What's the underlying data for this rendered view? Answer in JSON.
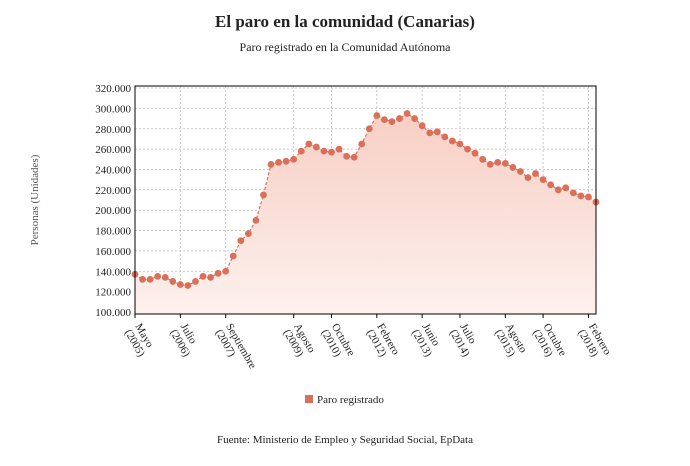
{
  "chart_data": {
    "type": "line",
    "title": "El paro en la comunidad (Canarias)",
    "subtitle": "Paro registrado en la Comunidad Autónoma",
    "y_label": "Personas (Unidades)",
    "source": "Fuente: Ministerio de Empleo y Seguridad Social, EpData",
    "categories": [
      "Mayo (2005)",
      null,
      null,
      null,
      null,
      null,
      "Julio (2006)",
      null,
      null,
      null,
      null,
      null,
      "Septiembre (2007)",
      null,
      null,
      null,
      null,
      null,
      null,
      null,
      null,
      "Agosto (2009)",
      null,
      null,
      null,
      null,
      "Octubre (2010)",
      null,
      null,
      null,
      null,
      null,
      "Febrero (2012)",
      null,
      null,
      null,
      null,
      null,
      "Junio (2013)",
      null,
      null,
      null,
      null,
      "Julio (2014)",
      null,
      null,
      null,
      null,
      null,
      "Agosto (2015)",
      null,
      null,
      null,
      null,
      "Octubre (2016)",
      null,
      null,
      null,
      null,
      null,
      "Febrero (2018)",
      null
    ],
    "series": [
      {
        "name": "Paro registrado",
        "color": "#d9705a",
        "values": [
          137000,
          132000,
          132000,
          135000,
          134000,
          130000,
          127000,
          126000,
          130000,
          135000,
          134000,
          138000,
          140000,
          155000,
          170000,
          177000,
          190000,
          215000,
          245000,
          247000,
          248000,
          250000,
          258000,
          265000,
          262000,
          258000,
          257000,
          260000,
          253000,
          252000,
          265000,
          280000,
          293000,
          289000,
          287000,
          290000,
          295000,
          290000,
          283000,
          276000,
          277000,
          272000,
          268000,
          265000,
          260000,
          256000,
          250000,
          245000,
          247000,
          246000,
          242000,
          238000,
          232000,
          236000,
          230000,
          225000,
          220000,
          222000,
          217000,
          214000,
          213000,
          208000
        ]
      }
    ],
    "ylim": [
      98000,
      322000
    ],
    "yticks": [
      {
        "value": 100000,
        "label": "100.000"
      },
      {
        "value": 120000,
        "label": "120.000"
      },
      {
        "value": 140000,
        "label": "140.000"
      },
      {
        "value": 160000,
        "label": "160.000"
      },
      {
        "value": 180000,
        "label": "180.000"
      },
      {
        "value": 200000,
        "label": "200.000"
      },
      {
        "value": 220000,
        "label": "220.000"
      },
      {
        "value": 240000,
        "label": "240.000"
      },
      {
        "value": 260000,
        "label": "260.000"
      },
      {
        "value": 280000,
        "label": "280.000"
      },
      {
        "value": 300000,
        "label": "300.000"
      },
      {
        "value": 320000,
        "label": "320.000"
      }
    ],
    "grid": true
  }
}
